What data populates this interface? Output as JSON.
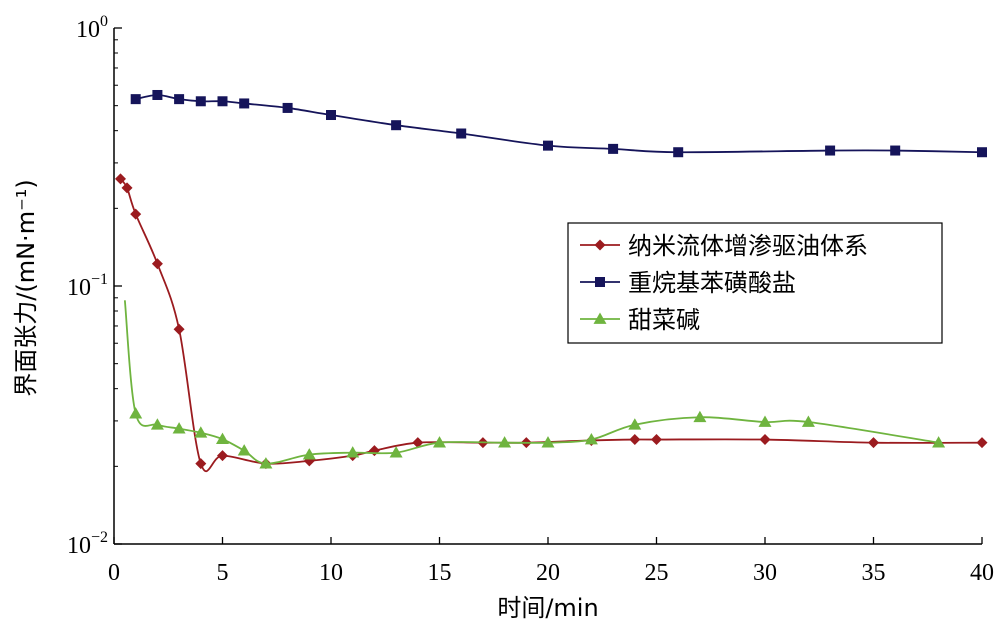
{
  "chart_data": {
    "type": "line",
    "xlabel": "时间/min",
    "ylabel": "界面张力/(mN·m⁻¹)",
    "xlim": [
      0,
      40
    ],
    "ylim": [
      0.01,
      1
    ],
    "y_scale": "log",
    "grid": false,
    "legend_position": "right",
    "x_ticks": [
      "0",
      "5",
      "10",
      "15",
      "20",
      "25",
      "30",
      "35",
      "40"
    ],
    "y_ticks": [
      {
        "base": "10",
        "exp": "0"
      },
      {
        "base": "10",
        "exp": "−1"
      },
      {
        "base": "10",
        "exp": "−2"
      }
    ],
    "series": [
      {
        "name": "纳米流体增渗驱油体系",
        "color": "#9b1b1f",
        "marker": "diamond",
        "x": [
          0.3,
          0.6,
          1,
          2,
          3,
          4,
          5,
          7,
          9,
          11,
          12,
          14,
          17,
          19,
          22,
          24,
          25,
          30,
          35,
          40
        ],
        "y": [
          0.26,
          0.24,
          0.19,
          0.122,
          0.068,
          0.0205,
          0.022,
          0.0205,
          0.021,
          0.022,
          0.023,
          0.0247,
          0.0247,
          0.0247,
          0.0252,
          0.0254,
          0.0254,
          0.0254,
          0.0247,
          0.0247
        ]
      },
      {
        "name": "重烷基苯磺酸盐",
        "color": "#15145a",
        "marker": "square",
        "x": [
          1,
          2,
          3,
          4,
          5,
          6,
          8,
          10,
          13,
          16,
          20,
          23,
          26,
          33,
          36,
          40
        ],
        "y": [
          0.53,
          0.55,
          0.53,
          0.52,
          0.52,
          0.51,
          0.49,
          0.46,
          0.42,
          0.39,
          0.35,
          0.34,
          0.33,
          0.335,
          0.335,
          0.33
        ]
      },
      {
        "name": "甜菜碱",
        "color": "#6fb43f",
        "marker": "triangle",
        "x": [
          0.5,
          1,
          2,
          3,
          4,
          5,
          6,
          7,
          9,
          11,
          13,
          15,
          18,
          20,
          22,
          24,
          27,
          30,
          32,
          38
        ],
        "y": [
          0.088,
          0.032,
          0.029,
          0.028,
          0.027,
          0.0255,
          0.023,
          0.0205,
          0.0222,
          0.0226,
          0.0226,
          0.0247,
          0.0247,
          0.0247,
          0.0254,
          0.029,
          0.031,
          0.0297,
          0.0297,
          0.0247
        ],
        "marker_skip_first": true
      }
    ]
  }
}
